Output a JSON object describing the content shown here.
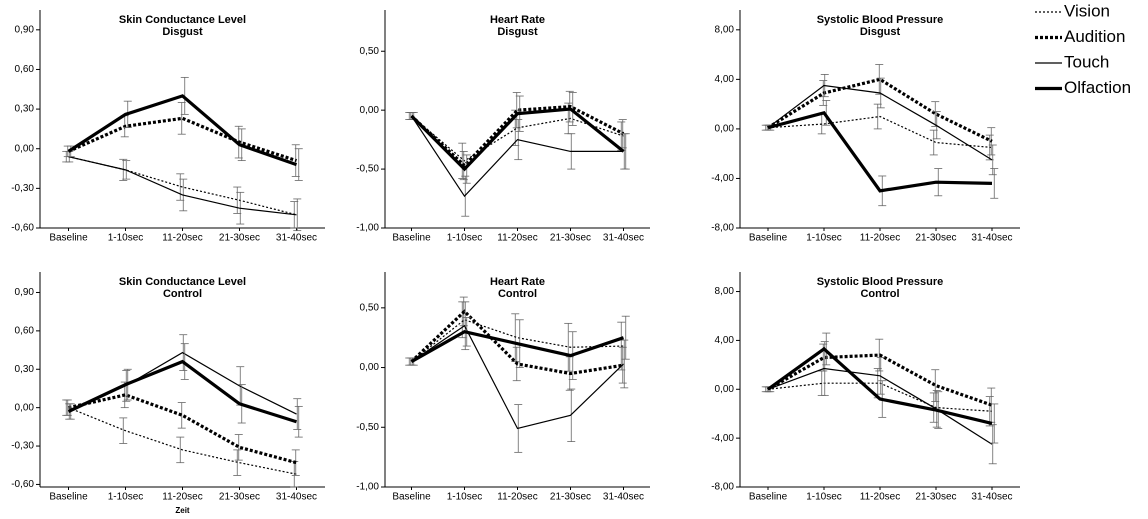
{
  "legend": [
    {
      "name": "Vision",
      "dash": "2,2",
      "width": 1.2
    },
    {
      "name": "Audition",
      "dash": "3,2",
      "width": 3.2
    },
    {
      "name": "Touch",
      "dash": "",
      "width": 1.2
    },
    {
      "name": "Olfaction",
      "dash": "",
      "width": 3.2
    }
  ],
  "chart_data": [
    {
      "type": "line",
      "title": "Skin Conductance Level",
      "subtitle": "Disgust",
      "categories": [
        "Baseline",
        "1-10sec",
        "11-20sec",
        "21-30sec",
        "31-40sec"
      ],
      "ylim": [
        -0.6,
        1.05
      ],
      "yticks": [
        {
          "value": -0.6,
          "label": "-0,60"
        },
        {
          "value": -0.3,
          "label": "-0,30"
        },
        {
          "value": 0,
          "label": "0,00"
        },
        {
          "value": 0.3,
          "label": "0,30"
        },
        {
          "value": 0.6,
          "label": "0,60"
        },
        {
          "value": 0.9,
          "label": "0,90"
        }
      ],
      "series": [
        {
          "values": [
            -0.06,
            -0.16,
            -0.29,
            -0.39,
            -0.5
          ],
          "errors": [
            0.04,
            0.08,
            0.1,
            0.1,
            0.1
          ]
        },
        {
          "values": [
            -0.02,
            0.17,
            0.23,
            0.05,
            -0.09
          ],
          "errors": [
            0.04,
            0.08,
            0.12,
            0.12,
            0.12
          ]
        },
        {
          "values": [
            -0.06,
            -0.16,
            -0.35,
            -0.45,
            -0.5
          ],
          "errors": [
            0.04,
            0.07,
            0.12,
            0.12,
            0.12
          ]
        },
        {
          "values": [
            -0.02,
            0.26,
            0.4,
            0.03,
            -0.12
          ],
          "errors": [
            0.04,
            0.1,
            0.14,
            0.12,
            0.12
          ]
        }
      ]
    },
    {
      "type": "line",
      "title": "Heart Rate",
      "subtitle": "Disgust",
      "categories": [
        "Baseline",
        "1-10sec",
        "11-20sec",
        "21-30sec",
        "31-40sec"
      ],
      "ylim": [
        -1,
        0.85
      ],
      "yticks": [
        {
          "value": -1,
          "label": "-1,00"
        },
        {
          "value": -0.5,
          "label": "-0,50"
        },
        {
          "value": 0,
          "label": "0,00"
        },
        {
          "value": 0.5,
          "label": "0,50"
        }
      ],
      "series": [
        {
          "values": [
            -0.05,
            -0.43,
            -0.15,
            -0.07,
            -0.22
          ],
          "errors": [
            0.03,
            0.15,
            0.15,
            0.13,
            0.12
          ]
        },
        {
          "values": [
            -0.05,
            -0.47,
            0,
            0.03,
            -0.2
          ],
          "errors": [
            0.03,
            0.12,
            0.15,
            0.13,
            0.12
          ]
        },
        {
          "values": [
            -0.05,
            -0.73,
            -0.25,
            -0.35,
            -0.35
          ],
          "errors": [
            0.03,
            0.17,
            0.17,
            0.15,
            0.15
          ]
        },
        {
          "values": [
            -0.05,
            -0.5,
            -0.03,
            0.01,
            -0.35
          ],
          "errors": [
            0.03,
            0.12,
            0.15,
            0.14,
            0.15
          ]
        }
      ]
    },
    {
      "type": "line",
      "title": "Systolic Blood Pressure",
      "subtitle": "Disgust",
      "categories": [
        "Baseline",
        "1-10sec",
        "11-20sec",
        "21-30sec",
        "31-40sec"
      ],
      "ylim": [
        -8,
        9.6
      ],
      "yticks": [
        {
          "value": -8,
          "label": "-8,00"
        },
        {
          "value": -4,
          "label": "-4,00"
        },
        {
          "value": 0,
          "label": "0,00"
        },
        {
          "value": 4,
          "label": "4,00"
        },
        {
          "value": 8,
          "label": "8,00"
        }
      ],
      "series": [
        {
          "values": [
            0.1,
            0.4,
            1,
            -1.1,
            -1.5
          ],
          "errors": [
            0.2,
            0.8,
            1,
            1,
            1
          ]
        },
        {
          "values": [
            0.1,
            2.9,
            4,
            1.2,
            -1
          ],
          "errors": [
            0.2,
            1,
            1.2,
            1,
            1.1
          ]
        },
        {
          "values": [
            0.1,
            3.5,
            2.9,
            0.3,
            -2.5
          ],
          "errors": [
            0.2,
            0.9,
            1.2,
            1.1,
            1.2
          ]
        },
        {
          "values": [
            0.1,
            1.3,
            -5,
            -4.3,
            -4.4
          ],
          "errors": [
            0.2,
            1,
            1.2,
            1.1,
            1.2
          ]
        }
      ]
    },
    {
      "type": "line",
      "title": "Skin Conductance Level",
      "subtitle": "Control",
      "x_label": "Zeit",
      "categories": [
        "Baseline",
        "1-10sec",
        "11-20sec",
        "21-30sec",
        "31-40sec"
      ],
      "ylim": [
        -0.62,
        1.06
      ],
      "yticks": [
        {
          "value": -0.6,
          "label": "-0,60"
        },
        {
          "value": -0.3,
          "label": "-0,30"
        },
        {
          "value": 0,
          "label": "0,00"
        },
        {
          "value": 0.3,
          "label": "0,30"
        },
        {
          "value": 0.6,
          "label": "0,60"
        },
        {
          "value": 0.9,
          "label": "0,90"
        }
      ],
      "series": [
        {
          "values": [
            0,
            -0.18,
            -0.33,
            -0.43,
            -0.52
          ],
          "errors": [
            0.06,
            0.1,
            0.1,
            0.1,
            0.1
          ]
        },
        {
          "values": [
            0,
            0.1,
            -0.06,
            -0.31,
            -0.43
          ],
          "errors": [
            0.06,
            0.1,
            0.1,
            0.1,
            0.1
          ]
        },
        {
          "values": [
            -0.03,
            0.17,
            0.43,
            0.17,
            -0.05
          ],
          "errors": [
            0.06,
            0.12,
            0.14,
            0.15,
            0.12
          ]
        },
        {
          "values": [
            -0.03,
            0.18,
            0.36,
            0.03,
            -0.11
          ],
          "errors": [
            0.06,
            0.12,
            0.14,
            0.15,
            0.12
          ]
        }
      ]
    },
    {
      "type": "line",
      "title": "Heart Rate",
      "subtitle": "Control",
      "categories": [
        "Baseline",
        "1-10sec",
        "11-20sec",
        "21-30sec",
        "31-40sec"
      ],
      "ylim": [
        -1,
        0.8
      ],
      "yticks": [
        {
          "value": -1,
          "label": "-1,00"
        },
        {
          "value": -0.5,
          "label": "-0,50"
        },
        {
          "value": 0,
          "label": "0,00"
        },
        {
          "value": 0.5,
          "label": "0,50"
        }
      ],
      "series": [
        {
          "values": [
            0.05,
            0.4,
            0.25,
            0.17,
            0.18
          ],
          "errors": [
            0.03,
            0.15,
            0.2,
            0.2,
            0.2
          ]
        },
        {
          "values": [
            0.05,
            0.47,
            0.03,
            -0.05,
            0.02
          ],
          "errors": [
            0.03,
            0.12,
            0.14,
            0.14,
            0.15
          ]
        },
        {
          "values": [
            0.05,
            0.35,
            -0.51,
            -0.4,
            0.03
          ],
          "errors": [
            0.03,
            0.2,
            0.2,
            0.22,
            0.2
          ]
        },
        {
          "values": [
            0.05,
            0.3,
            0.2,
            0.1,
            0.25
          ],
          "errors": [
            0.03,
            0.12,
            0.2,
            0.2,
            0.18
          ]
        }
      ]
    },
    {
      "type": "line",
      "title": "Systolic Blood Pressure",
      "subtitle": "Control",
      "categories": [
        "Baseline",
        "1-10sec",
        "11-20sec",
        "21-30sec",
        "31-40sec"
      ],
      "ylim": [
        -8,
        9.6
      ],
      "yticks": [
        {
          "value": -8,
          "label": "-8,00"
        },
        {
          "value": -4,
          "label": "-4,00"
        },
        {
          "value": 0,
          "label": "0,00"
        },
        {
          "value": 4,
          "label": "4,00"
        },
        {
          "value": 8,
          "label": "8,00"
        }
      ],
      "series": [
        {
          "values": [
            0,
            0.5,
            0.5,
            -1.5,
            -1.8
          ],
          "errors": [
            0.2,
            1,
            1.2,
            1.2,
            1.2
          ]
        },
        {
          "values": [
            0,
            2.6,
            2.8,
            0.3,
            -1.3
          ],
          "errors": [
            0.2,
            1.1,
            1.3,
            1.3,
            1.4
          ]
        },
        {
          "values": [
            0,
            1.7,
            1.1,
            -1.6,
            -4.5
          ],
          "errors": [
            0.2,
            2.2,
            1.5,
            1.5,
            1.6
          ]
        },
        {
          "values": [
            0,
            3.3,
            -0.8,
            -1.7,
            -2.8
          ],
          "errors": [
            0.2,
            1.3,
            1.5,
            1.5,
            1.6
          ]
        }
      ]
    }
  ]
}
